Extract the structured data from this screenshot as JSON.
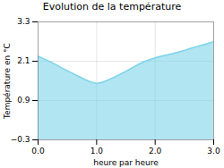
{
  "chart_data": {
    "type": "area",
    "title": "Evolution de la température",
    "xlabel": "heure par heure",
    "ylabel": "Température en °C",
    "x": [
      0.0,
      0.1,
      0.2,
      0.3,
      0.4,
      0.5,
      0.6,
      0.7,
      0.8,
      0.9,
      1.0,
      1.1,
      1.2,
      1.3,
      1.4,
      1.5,
      1.6,
      1.7,
      1.8,
      1.9,
      2.0,
      2.1,
      2.2,
      2.3,
      2.4,
      2.5,
      2.6,
      2.7,
      2.8,
      2.9,
      3.0
    ],
    "values": [
      2.25,
      2.17,
      2.09,
      2.0,
      1.9,
      1.81,
      1.72,
      1.63,
      1.54,
      1.47,
      1.42,
      1.46,
      1.53,
      1.61,
      1.7,
      1.79,
      1.89,
      1.99,
      2.08,
      2.14,
      2.2,
      2.25,
      2.29,
      2.33,
      2.38,
      2.43,
      2.49,
      2.54,
      2.59,
      2.64,
      2.7
    ],
    "color": "#7dd4e8",
    "xlim": [
      0,
      3
    ],
    "ylim": [
      -0.3,
      3.3
    ],
    "xticks": [
      0,
      1,
      2,
      3
    ],
    "yticks": [
      -0.3,
      0.9,
      2.1,
      3.3
    ],
    "grid": true
  }
}
